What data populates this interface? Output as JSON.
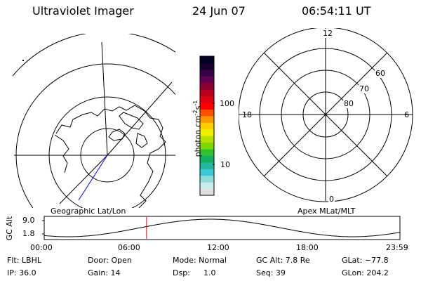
{
  "header": {
    "instrument": "Ultraviolet Imager",
    "date": "24 Jun 07",
    "time": "06:54:11 UT"
  },
  "colorbar": {
    "unit_text": "photon cm",
    "unit_sup1": "-2",
    "unit_mid": "s",
    "unit_sup2": "-1",
    "ticks": [
      "100",
      "10"
    ],
    "colors": [
      "#e0e0e0",
      "#c8ecec",
      "#8fdcdc",
      "#3ec8d8",
      "#1fb89a",
      "#12b060",
      "#30c030",
      "#78d800",
      "#b8e000",
      "#f0f000",
      "#ffd000",
      "#ff9800",
      "#ff5000",
      "#ff0000",
      "#e00010",
      "#b80020",
      "#8c0030",
      "#600050",
      "#380048",
      "#180030",
      "#000020"
    ]
  },
  "left_map": {
    "label": "Geographic Lat/Lon"
  },
  "right_map": {
    "label": "Apex MLat/MLT",
    "mlt_labels": [
      "12",
      "18",
      "6",
      "0"
    ],
    "lat_labels": [
      "60",
      "70",
      "80"
    ]
  },
  "altitude_panel": {
    "ylabel": "GC Alt",
    "y_ticks": [
      "9.0",
      "1.8"
    ],
    "x_ticks": [
      "00:00",
      "06:00",
      "12:00",
      "18:00",
      "23:59"
    ],
    "marker_time_hours": 6.903,
    "marker_color": "#ff0000"
  },
  "info": {
    "row1": {
      "filter": "Flt: LBHL",
      "door": "Door: Open",
      "mode": "Mode: Normal",
      "gc_alt": "GC Alt: 7.8 Re",
      "glat": "GLat: −77.8"
    },
    "row2": {
      "ip": "IP: 36.0",
      "gain": "Gain: 14",
      "dsp_label": "Dsp:",
      "dsp_value": "1.0",
      "seq": "Seq: 39",
      "glon": "GLon: 204.2"
    }
  },
  "colors": {
    "trace": "#0000ff",
    "ink": "#000000",
    "background": "#ffffff"
  }
}
